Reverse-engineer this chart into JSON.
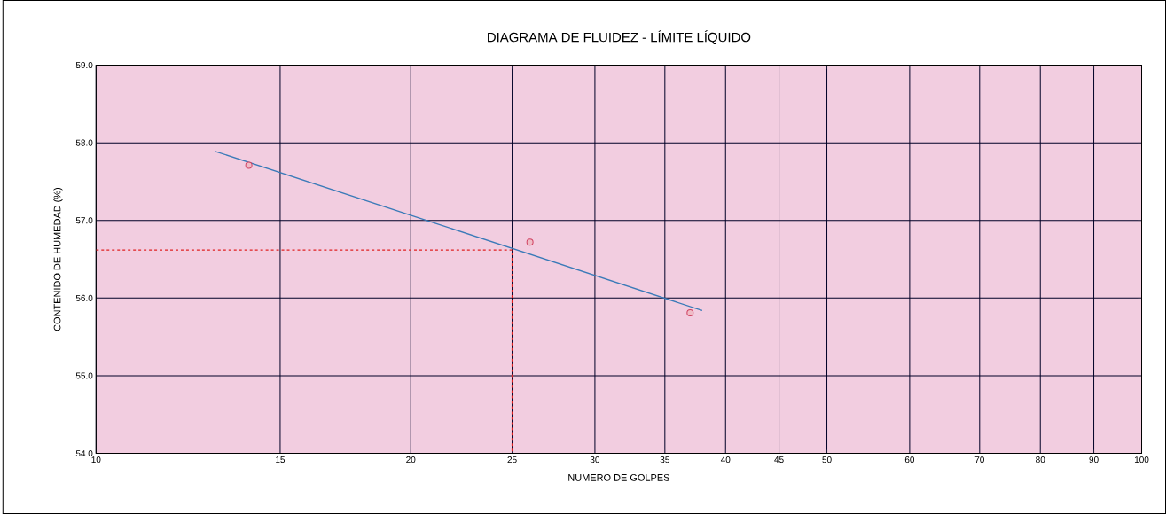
{
  "chart_data": {
    "type": "scatter",
    "title": "DIAGRAMA DE FLUIDEZ - LÍMITE LÍQUIDO",
    "xlabel": "NUMERO DE GOLPES",
    "ylabel": "CONTENIDO DE HUMEDAD (%)",
    "log": "x",
    "grid": true,
    "xlim": [
      10,
      100
    ],
    "ylim": [
      54,
      59
    ],
    "xticks": [
      10,
      15,
      20,
      25,
      30,
      35,
      40,
      45,
      50,
      60,
      70,
      80,
      90,
      100
    ],
    "yticks": [
      {
        "value": 54,
        "label": "54.0"
      },
      {
        "value": 55,
        "label": "55.0"
      },
      {
        "value": 56,
        "label": "56.0"
      },
      {
        "value": 57,
        "label": "57.0"
      },
      {
        "value": 58,
        "label": "58.0"
      },
      {
        "value": 59,
        "label": "59.0"
      }
    ],
    "series": [
      {
        "marker": "circle",
        "color": "#d04060",
        "x": [
          14,
          26,
          37
        ],
        "values": [
          57.71,
          56.72,
          55.81
        ]
      },
      {
        "type": "line",
        "marker": "none",
        "line_style": "solid",
        "color": "#3a7ab8",
        "x": [
          13,
          38
        ],
        "values": [
          57.89,
          55.84
        ]
      },
      {
        "type": "line",
        "marker": "none",
        "line_style": "dashed",
        "color": "#e02020",
        "x": [
          10,
          25,
          25
        ],
        "values": [
          56.62,
          56.62,
          54
        ]
      }
    ]
  }
}
